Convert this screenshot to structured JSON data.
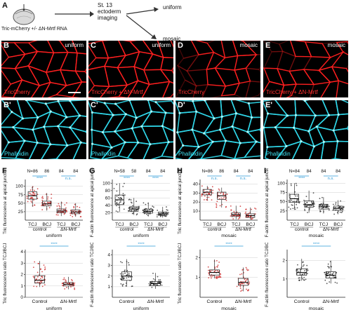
{
  "panel_letters": {
    "A": "A",
    "F": "F",
    "G": "G",
    "H": "H",
    "I": "I"
  },
  "schematic": {
    "injection_label": "Tric-mCherry +/- ΔN-Mrtf RNA",
    "stage_line1": "St. 13",
    "stage_line2": "ectoderm",
    "stage_line3": "imaging",
    "outcome_uniform": "uniform",
    "outcome_mosaic": "mosaic"
  },
  "images": {
    "top_row": [
      {
        "letter": "B",
        "tag": "uniform",
        "stain": "TricCherry"
      },
      {
        "letter": "C",
        "tag": "uniform",
        "stain": "TricCherry + ΔN-Mrtf"
      },
      {
        "letter": "D",
        "tag": "mosaic",
        "stain": "TricCherry"
      },
      {
        "letter": "E",
        "tag": "mosaic",
        "stain": "TricCherry + ΔN-Mrtf"
      }
    ],
    "bottom_row": [
      {
        "letter": "B'",
        "stain": "Phalloidin"
      },
      {
        "letter": "C'",
        "stain": "Phalloidin"
      },
      {
        "letter": "D'",
        "stain": "Phalloidin"
      },
      {
        "letter": "E'",
        "stain": "Phalloidin"
      }
    ],
    "colors": {
      "red": "#ff2020",
      "cyan": "#30d8ea"
    }
  },
  "chart_data": [
    {
      "id": "F-top",
      "type": "box-jitter",
      "ylabel": "Tric fluorescence at apical junctions",
      "yticks": [
        25,
        50,
        75,
        100
      ],
      "ylim": [
        0,
        120
      ],
      "categories": [
        "TCJ",
        "BCJ",
        "TCJ",
        "BCJ"
      ],
      "groups": [
        "control",
        "ΔN-Mrtf"
      ],
      "condition": "uniform",
      "n_labels": [
        "N=86",
        "86",
        "84",
        "84"
      ],
      "significance": [
        "****",
        "n.s."
      ],
      "medians": [
        72,
        48,
        27,
        24
      ],
      "q1": [
        62,
        42,
        22,
        19
      ],
      "q3": [
        84,
        56,
        33,
        30
      ],
      "whisker_low": [
        40,
        28,
        12,
        10
      ],
      "whisker_high": [
        100,
        80,
        55,
        50
      ],
      "point_color": "#c81a1a"
    },
    {
      "id": "G-top",
      "type": "box-jitter",
      "ylabel": "F-actin fluorescence at apical junctions",
      "yticks": [
        20,
        40,
        60,
        80,
        100
      ],
      "ylim": [
        0,
        110
      ],
      "categories": [
        "TCJ",
        "BCJ",
        "TCJ",
        "BCJ"
      ],
      "groups": [
        "control",
        "ΔN-Mrtf"
      ],
      "condition": "uniform",
      "n_labels": [
        "N=58",
        "58",
        "84",
        "84"
      ],
      "significance": [
        "****",
        "****"
      ],
      "medians": [
        55,
        30,
        24,
        17
      ],
      "q1": [
        42,
        24,
        19,
        13
      ],
      "q3": [
        68,
        36,
        30,
        22
      ],
      "whisker_low": [
        22,
        14,
        10,
        7
      ],
      "whisker_high": [
        100,
        60,
        48,
        36
      ],
      "point_color": "#222222"
    },
    {
      "id": "H-top",
      "type": "box-jitter",
      "ylabel": "Tric fluorescence at apical junctions",
      "yticks": [
        10,
        20,
        30,
        40
      ],
      "ylim": [
        0,
        45
      ],
      "categories": [
        "TCJ",
        "BCJ",
        "TCJ",
        "BCJ"
      ],
      "groups": [
        "control",
        "ΔN-Mrtf"
      ],
      "condition": "mosaic",
      "n_labels": [
        "N=86",
        "86",
        "84",
        "84"
      ],
      "significance": [
        "n.s.",
        "n.s."
      ],
      "medians": [
        31,
        27,
        6,
        5
      ],
      "q1": [
        28,
        23,
        4,
        3
      ],
      "q3": [
        34,
        31,
        8,
        7
      ],
      "whisker_low": [
        22,
        14,
        1,
        1
      ],
      "whisker_high": [
        38,
        36,
        16,
        14
      ],
      "point_color": "#c81a1a"
    },
    {
      "id": "I-top",
      "type": "box-jitter",
      "ylabel": "F-actin fluorescence at apical junctions",
      "yticks": [
        25,
        50,
        75,
        100
      ],
      "ylim": [
        0,
        110
      ],
      "categories": [
        "TCJ",
        "BCJ",
        "TCJ",
        "BCJ"
      ],
      "groups": [
        "control",
        "ΔN-Mrtf"
      ],
      "condition": "mosaic",
      "n_labels": [
        "N=84",
        "84",
        "84",
        "84"
      ],
      "significance": [
        "****",
        "n.s."
      ],
      "medians": [
        58,
        42,
        36,
        32
      ],
      "q1": [
        48,
        35,
        30,
        27
      ],
      "q3": [
        70,
        52,
        43,
        38
      ],
      "whisker_low": [
        28,
        20,
        18,
        16
      ],
      "whisker_high": [
        100,
        80,
        62,
        54
      ],
      "point_color": "#222222"
    },
    {
      "id": "F-bottom",
      "type": "box-jitter",
      "ylabel": "Tric fluorescence ratio TCJ/BCJ",
      "yticks": [
        0,
        1,
        2,
        3,
        4
      ],
      "ylim": [
        0,
        4.2
      ],
      "categories": [
        "Control",
        "ΔN-Mrtf"
      ],
      "condition": "uniform",
      "significance": [
        "****"
      ],
      "medians": [
        1.5,
        1.15
      ],
      "q1": [
        1.25,
        1.0
      ],
      "q3": [
        1.9,
        1.3
      ],
      "whisker_low": [
        0.9,
        0.7
      ],
      "whisker_high": [
        3.2,
        1.8
      ],
      "point_color": "#c81a1a"
    },
    {
      "id": "G-bottom",
      "type": "box-jitter",
      "ylabel": "F-actin fluorescence ratio TCJ/BCJ",
      "yticks": [
        1,
        2,
        3,
        4
      ],
      "ylim": [
        0,
        4.5
      ],
      "categories": [
        "Control",
        "ΔN-Mrtf"
      ],
      "condition": "uniform",
      "significance": [
        "****"
      ],
      "medians": [
        2.0,
        1.3
      ],
      "q1": [
        1.6,
        1.1
      ],
      "q3": [
        2.4,
        1.5
      ],
      "whisker_low": [
        1.0,
        0.8
      ],
      "whisker_high": [
        3.6,
        2.3
      ],
      "point_color": "#222222"
    },
    {
      "id": "H-bottom",
      "type": "box-jitter",
      "ylabel": "Tric fluorescence ratio TCJ/BCJ",
      "yticks": [
        1,
        2
      ],
      "ylim": [
        0,
        2.4
      ],
      "categories": [
        "Control",
        "ΔN-Mrtf"
      ],
      "condition": "mosaic",
      "significance": [
        "****"
      ],
      "medians": [
        1.25,
        0.75
      ],
      "q1": [
        1.12,
        0.6
      ],
      "q3": [
        1.38,
        0.95
      ],
      "whisker_low": [
        0.95,
        0.3
      ],
      "whisker_high": [
        1.9,
        1.5
      ],
      "point_color": "#c81a1a"
    },
    {
      "id": "I-bottom",
      "type": "box-jitter",
      "ylabel": "F-actin fluorescence ratio TCJ/BCJ",
      "yticks": [
        1,
        2
      ],
      "ylim": [
        0,
        2.6
      ],
      "categories": [
        "Control",
        "ΔN-Mrtf"
      ],
      "condition": "mosaic",
      "significance": [
        "****"
      ],
      "medians": [
        1.35,
        1.2
      ],
      "q1": [
        1.2,
        1.05
      ],
      "q3": [
        1.55,
        1.4
      ],
      "whisker_low": [
        0.9,
        0.75
      ],
      "whisker_high": [
        2.1,
        2.0
      ],
      "point_color": "#222222"
    }
  ]
}
